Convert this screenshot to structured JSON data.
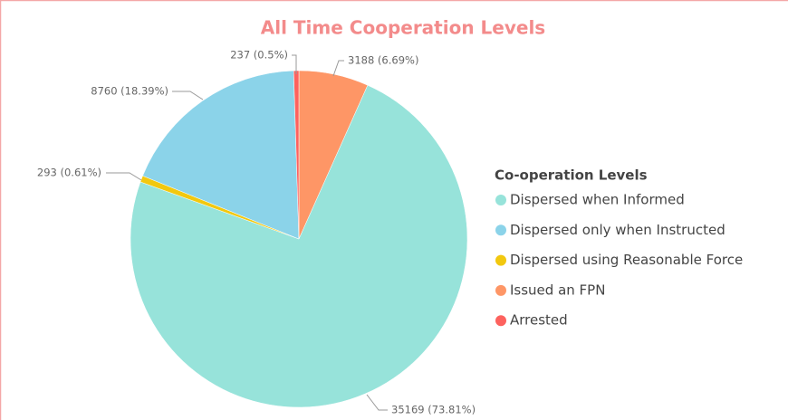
{
  "chart_data": {
    "type": "pie",
    "title": "All Time Cooperation Levels",
    "legend_title": "Co-operation Levels",
    "categories": [
      "Dispersed when Informed",
      "Dispersed only when Instructed",
      "Dispersed using Reasonable Force",
      "Issued an FPN",
      "Arrested"
    ],
    "values": [
      35169,
      8760,
      293,
      3188,
      237
    ],
    "value_labels": [
      "35169 (73.81%)",
      "8760 (18.39%)",
      "293 (0.61%)",
      "3188 (6.69%)",
      "237 (0.5%)"
    ],
    "colors": [
      "#97e3da",
      "#8bd3e9",
      "#f2c80f",
      "#fe9666",
      "#fd625e"
    ]
  }
}
